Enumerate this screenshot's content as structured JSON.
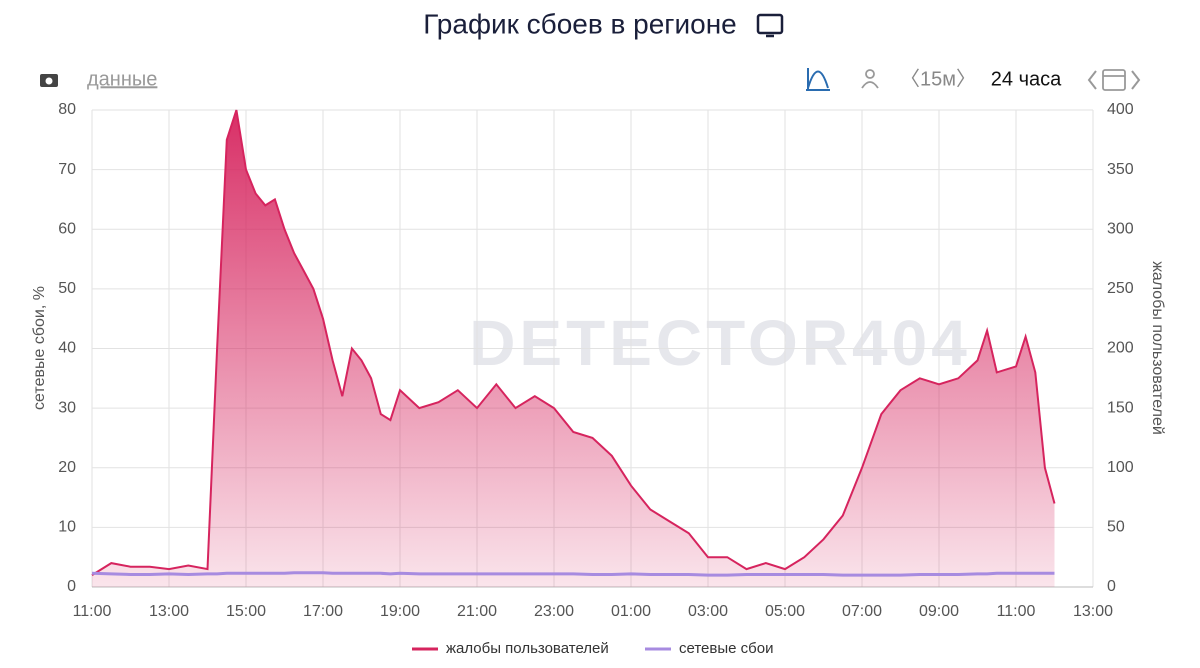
{
  "chart_data": {
    "type": "line",
    "title": "График сбоев в регионе",
    "toolbar": {
      "data_link": "данные",
      "interval": "〈15м〉",
      "range": "24 часа"
    },
    "watermark": "DETECTOR404",
    "ylabel": "сетевые сбои, %",
    "y2label": "жалобы пользователей",
    "x": [
      0,
      0.5,
      1,
      1.5,
      2,
      2.5,
      3,
      3.25,
      3.5,
      3.75,
      4,
      4.25,
      4.5,
      4.75,
      5,
      5.25,
      5.5,
      5.75,
      6,
      6.25,
      6.5,
      6.75,
      7,
      7.25,
      7.5,
      7.75,
      8,
      8.5,
      9,
      9.5,
      10,
      10.5,
      11,
      11.5,
      12,
      12.5,
      13,
      13.5,
      14,
      14.5,
      15,
      15.5,
      16,
      16.5,
      17,
      17.5,
      18,
      18.5,
      19,
      19.5,
      20,
      20.5,
      21,
      21.5,
      22,
      22.5,
      23,
      23.25,
      23.5,
      24,
      24.25,
      24.5,
      24.75,
      25
    ],
    "xlim": [
      0,
      26
    ],
    "xticks": [
      {
        "value": 0,
        "label": "11:00"
      },
      {
        "value": 2,
        "label": "13:00"
      },
      {
        "value": 4,
        "label": "15:00"
      },
      {
        "value": 6,
        "label": "17:00"
      },
      {
        "value": 8,
        "label": "19:00"
      },
      {
        "value": 10,
        "label": "21:00"
      },
      {
        "value": 12,
        "label": "23:00"
      },
      {
        "value": 14,
        "label": "01:00"
      },
      {
        "value": 16,
        "label": "03:00"
      },
      {
        "value": 18,
        "label": "05:00"
      },
      {
        "value": 20,
        "label": "07:00"
      },
      {
        "value": 22,
        "label": "09:00"
      },
      {
        "value": 24,
        "label": "11:00"
      },
      {
        "value": 26,
        "label": "13:00"
      }
    ],
    "ylim": [
      0,
      80
    ],
    "yticks": [
      0,
      10,
      20,
      30,
      40,
      50,
      60,
      70,
      80
    ],
    "y2lim": [
      0,
      400
    ],
    "y2ticks": [
      0,
      50,
      100,
      150,
      200,
      250,
      300,
      350,
      400
    ],
    "grid": true,
    "series": [
      {
        "name": "жалобы пользователей",
        "color": "#d6245e",
        "axis": "y2",
        "fill": true,
        "values": [
          10,
          20,
          17,
          17,
          15,
          18,
          15,
          200,
          375,
          400,
          350,
          330,
          320,
          325,
          300,
          280,
          265,
          250,
          225,
          190,
          160,
          200,
          190,
          175,
          145,
          140,
          165,
          150,
          155,
          165,
          150,
          170,
          150,
          160,
          150,
          130,
          125,
          110,
          85,
          65,
          55,
          45,
          25,
          25,
          15,
          20,
          15,
          25,
          40,
          60,
          100,
          145,
          165,
          175,
          170,
          175,
          190,
          215,
          180,
          185,
          210,
          180,
          100,
          70
        ]
      },
      {
        "name": "сетевые сбои",
        "color": "#a78be0",
        "axis": "y",
        "values": [
          2.3,
          2.2,
          2.1,
          2.1,
          2.2,
          2.1,
          2.2,
          2.2,
          2.3,
          2.3,
          2.3,
          2.3,
          2.3,
          2.3,
          2.3,
          2.4,
          2.4,
          2.4,
          2.4,
          2.3,
          2.3,
          2.3,
          2.3,
          2.3,
          2.3,
          2.2,
          2.3,
          2.2,
          2.2,
          2.2,
          2.2,
          2.2,
          2.2,
          2.2,
          2.2,
          2.2,
          2.1,
          2.1,
          2.2,
          2.1,
          2.1,
          2.1,
          2.0,
          2.0,
          2.1,
          2.1,
          2.1,
          2.1,
          2.1,
          2.0,
          2.0,
          2.0,
          2.0,
          2.1,
          2.1,
          2.1,
          2.2,
          2.2,
          2.3,
          2.3,
          2.3,
          2.3,
          2.3,
          2.3
        ]
      }
    ]
  }
}
